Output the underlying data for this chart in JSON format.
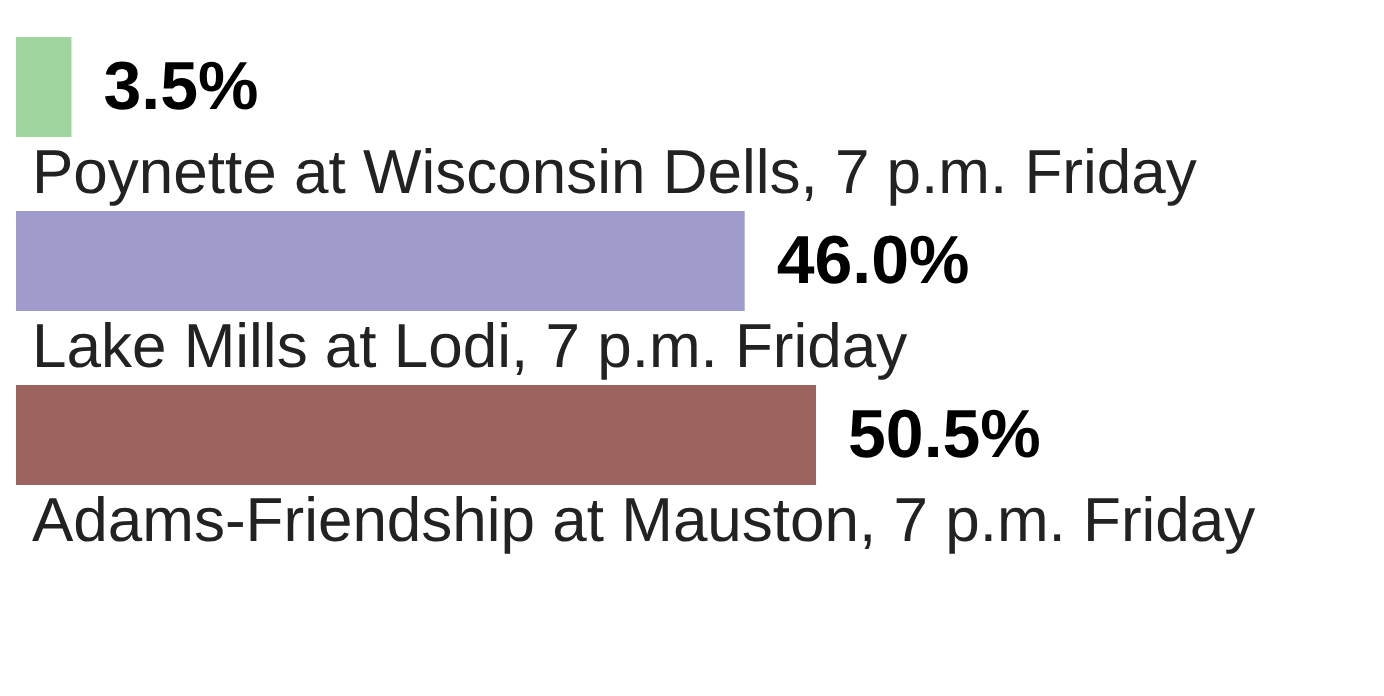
{
  "chart_data": {
    "type": "bar",
    "orientation": "horizontal",
    "categories": [
      null,
      "Poynette at Wisconsin Dells, 7 p.m. Friday",
      "Lake Mills at Lodi, 7 p.m. Friday",
      "Adams-Friendship at Mauston, 7 p.m. Friday"
    ],
    "values": [
      3.5,
      46.0,
      50.5,
      null
    ],
    "colors": [
      "#a0d49e",
      "#9f9bcd",
      "#9c635f",
      "#999999"
    ],
    "value_labels": [
      "3.5%",
      "46.0%",
      "50.5%",
      null
    ]
  }
}
